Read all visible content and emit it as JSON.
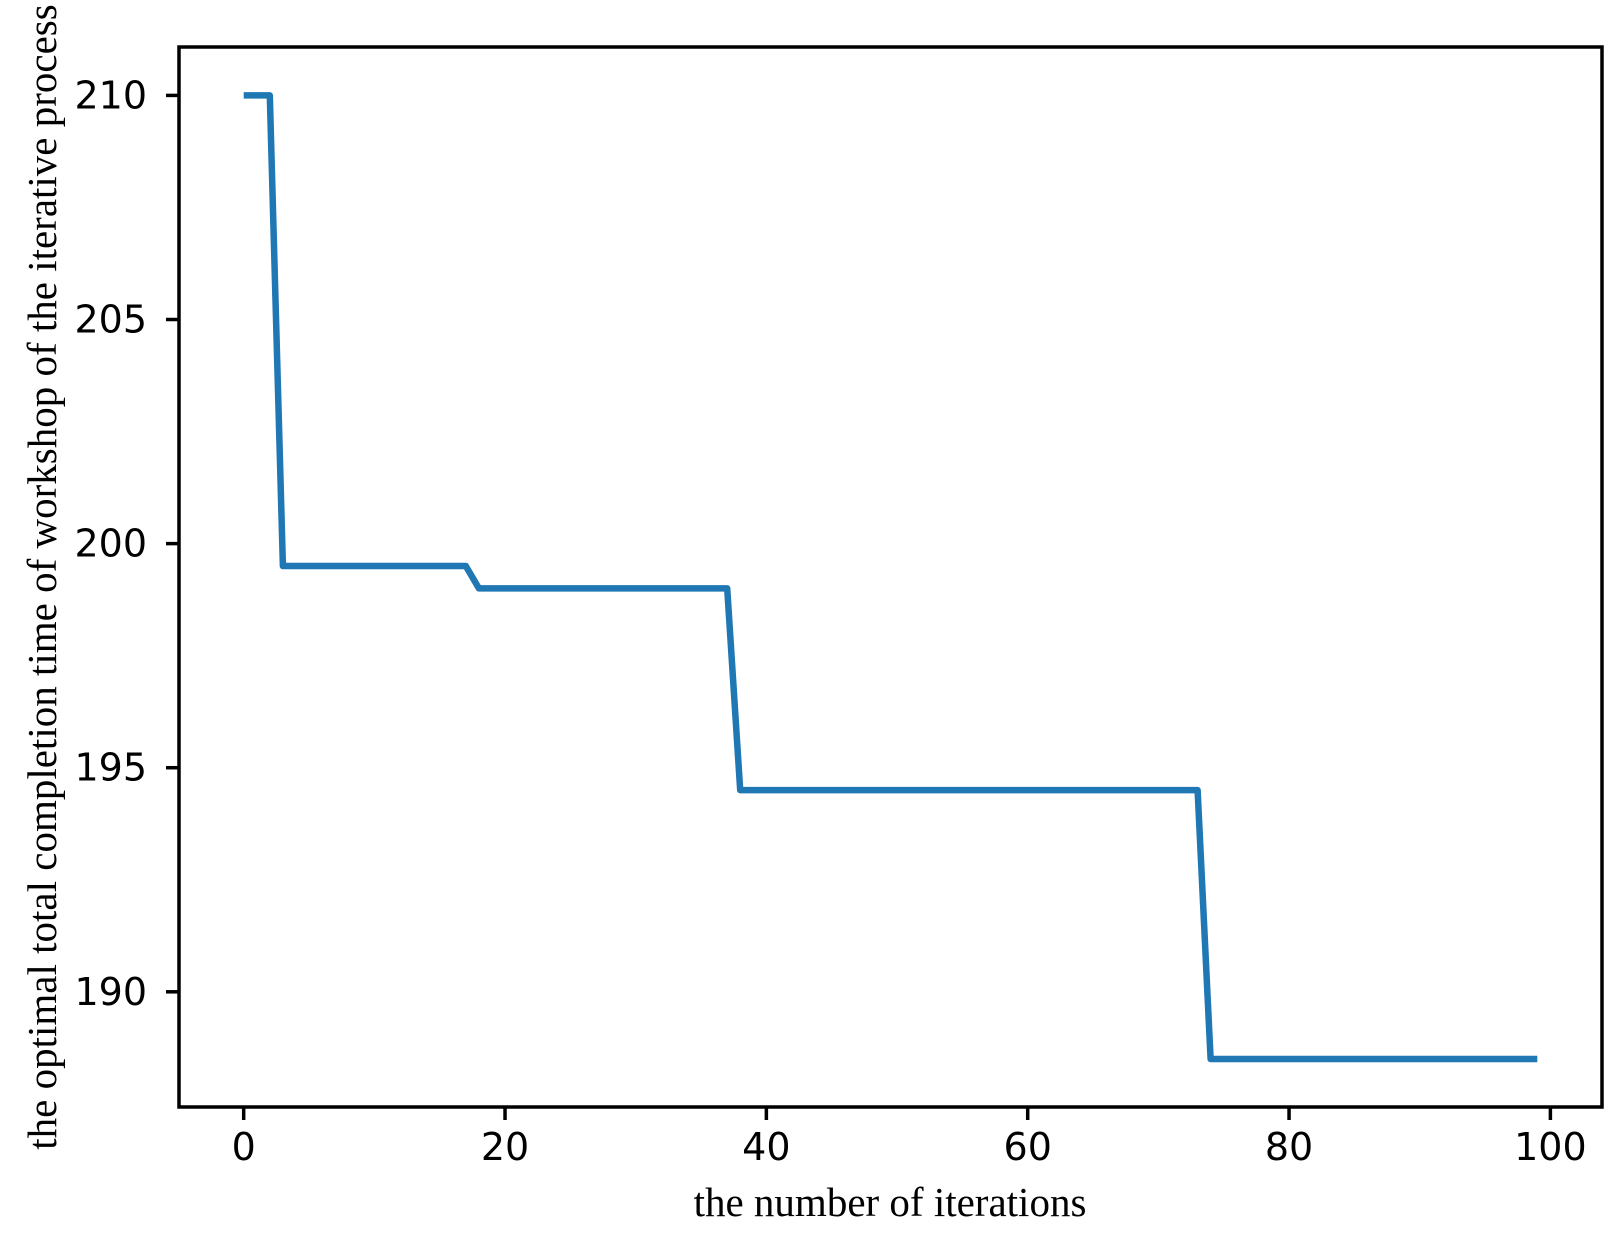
{
  "figure": {
    "background": "#ffffff"
  },
  "chart_data": {
    "type": "line",
    "title": "",
    "xlabel": "the number of iterations",
    "ylabel": "the optimal total completion time of workshop of the iterative process",
    "grid": false,
    "legend": "none",
    "line_color": "#1f77b4",
    "line_width": 6.5,
    "axis_color": "#000000",
    "xticks": [
      0,
      20,
      40,
      60,
      80,
      100
    ],
    "yticks": [
      190,
      195,
      200,
      205,
      210
    ],
    "xlim": [
      -4.95,
      103.95
    ],
    "ylim": [
      187.43,
      211.08
    ],
    "x": [
      0,
      1,
      2,
      3,
      4,
      5,
      6,
      7,
      8,
      9,
      10,
      11,
      12,
      13,
      14,
      15,
      16,
      17,
      18,
      19,
      20,
      21,
      22,
      23,
      24,
      25,
      26,
      27,
      28,
      29,
      30,
      31,
      32,
      33,
      34,
      35,
      36,
      37,
      38,
      39,
      40,
      41,
      42,
      43,
      44,
      45,
      46,
      47,
      48,
      49,
      50,
      51,
      52,
      53,
      54,
      55,
      56,
      57,
      58,
      59,
      60,
      61,
      62,
      63,
      64,
      65,
      66,
      67,
      68,
      69,
      70,
      71,
      72,
      73,
      74,
      75,
      76,
      77,
      78,
      79,
      80,
      81,
      82,
      83,
      84,
      85,
      86,
      87,
      88,
      89,
      90,
      91,
      92,
      93,
      94,
      95,
      96,
      97,
      98,
      99
    ],
    "y": [
      210,
      210,
      210,
      199.5,
      199.5,
      199.5,
      199.5,
      199.5,
      199.5,
      199.5,
      199.5,
      199.5,
      199.5,
      199.5,
      199.5,
      199.5,
      199.5,
      199.5,
      199,
      199,
      199,
      199,
      199,
      199,
      199,
      199,
      199,
      199,
      199,
      199,
      199,
      199,
      199,
      199,
      199,
      199,
      199,
      199,
      194.5,
      194.5,
      194.5,
      194.5,
      194.5,
      194.5,
      194.5,
      194.5,
      194.5,
      194.5,
      194.5,
      194.5,
      194.5,
      194.5,
      194.5,
      194.5,
      194.5,
      194.5,
      194.5,
      194.5,
      194.5,
      194.5,
      194.5,
      194.5,
      194.5,
      194.5,
      194.5,
      194.5,
      194.5,
      194.5,
      194.5,
      194.5,
      194.5,
      194.5,
      194.5,
      194.5,
      188.5,
      188.5,
      188.5,
      188.5,
      188.5,
      188.5,
      188.5,
      188.5,
      188.5,
      188.5,
      188.5,
      188.5,
      188.5,
      188.5,
      188.5,
      188.5,
      188.5,
      188.5,
      188.5,
      188.5,
      188.5,
      188.5,
      188.5,
      188.5,
      188.5,
      188.5
    ]
  }
}
